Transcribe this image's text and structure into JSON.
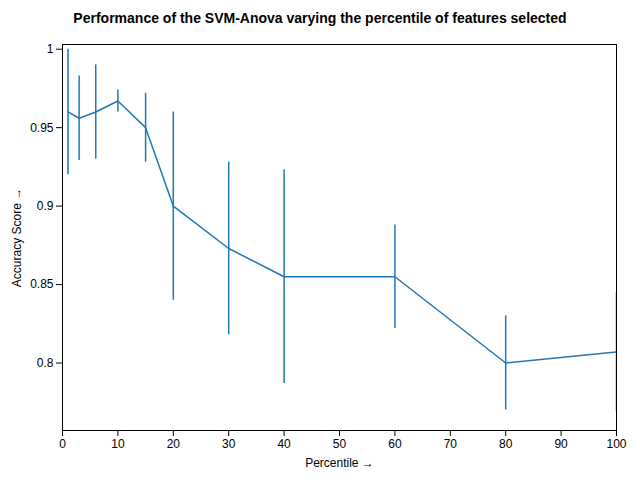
{
  "chart_data": {
    "type": "line",
    "title": "Performance of the SVM-Anova varying the percentile of features selected",
    "xlabel": "Percentile",
    "ylabel": "Accuracy Score",
    "color": "#1f77b4",
    "x": [
      1,
      3,
      6,
      10,
      15,
      20,
      30,
      40,
      60,
      80,
      100
    ],
    "values": [
      0.96,
      0.956,
      0.96,
      0.967,
      0.95,
      0.9,
      0.873,
      0.855,
      0.855,
      0.8,
      0.807
    ],
    "errors": [
      0.04,
      0.027,
      0.03,
      0.007,
      0.022,
      0.06,
      0.055,
      0.068,
      0.033,
      0.03,
      0.038
    ],
    "xlim": [
      0,
      100
    ],
    "xticks": [
      0,
      10,
      20,
      30,
      40,
      50,
      60,
      70,
      80,
      90,
      100
    ],
    "ylim": [
      0.757,
      1.003
    ],
    "yticks": [
      0.8,
      0.85,
      0.9,
      0.95,
      1
    ],
    "grid": false
  }
}
